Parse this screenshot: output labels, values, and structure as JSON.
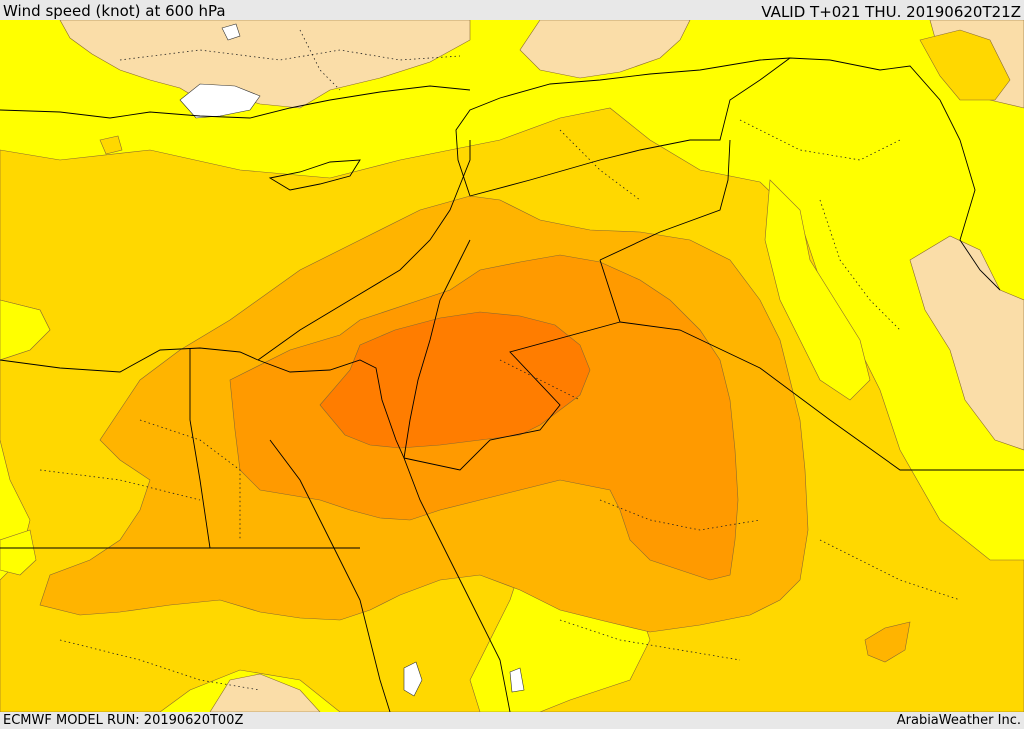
{
  "header": {
    "title": "Wind speed (knot) at 600 hPa",
    "valid": "VALID T+021 THU. 20190620T21Z"
  },
  "footer": {
    "model_run": "ECMWF MODEL RUN: 20190620T00Z",
    "credit": "ArabiaWeather Inc."
  },
  "colors": {
    "band_lowest": "#fadda8",
    "band_low": "#ffff00",
    "band_mid": "#ffd800",
    "band_high": "#ffb400",
    "band_higher": "#ff9a00",
    "band_highest": "#ff7d00",
    "water_gap": "#ffffff"
  }
}
